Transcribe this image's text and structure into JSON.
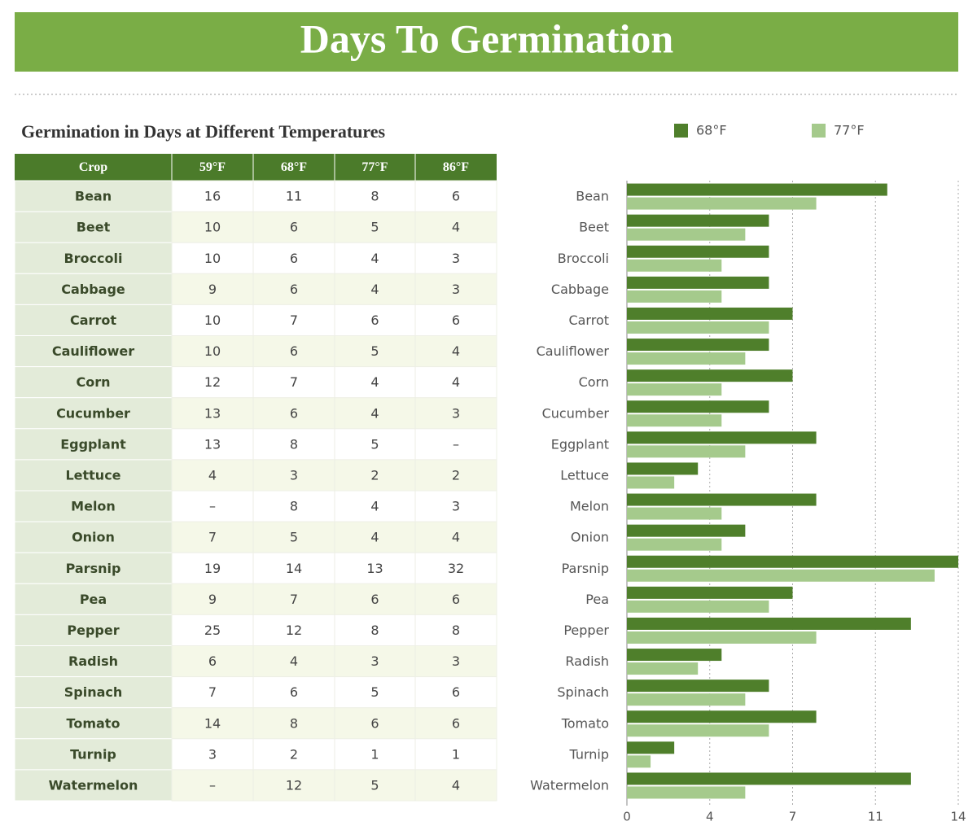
{
  "title": "Days To Germination",
  "table": {
    "title": "Germination in Days at Different Temperatures",
    "header": [
      "Crop",
      "59°F",
      "68°F",
      "77°F",
      "86°F"
    ],
    "rows": [
      [
        "Bean",
        16,
        11,
        8,
        6
      ],
      [
        "Beet",
        10,
        6,
        5,
        4
      ],
      [
        "Broccoli",
        10,
        6,
        4,
        3
      ],
      [
        "Cabbage",
        9,
        6,
        4,
        3
      ],
      [
        "Carrot",
        10,
        7,
        6,
        6
      ],
      [
        "Cauliflower",
        10,
        6,
        5,
        4
      ],
      [
        "Corn",
        12,
        7,
        4,
        4
      ],
      [
        "Cucumber",
        13,
        6,
        4,
        3
      ],
      [
        "Eggplant",
        13,
        8,
        5,
        "–"
      ],
      [
        "Lettuce",
        4,
        3,
        2,
        2
      ],
      [
        "Melon",
        "–",
        8,
        4,
        3
      ],
      [
        "Onion",
        7,
        5,
        4,
        4
      ],
      [
        "Parsnip",
        19,
        14,
        13,
        32
      ],
      [
        "Pea",
        9,
        7,
        6,
        6
      ],
      [
        "Pepper",
        25,
        12,
        8,
        8
      ],
      [
        "Radish",
        6,
        4,
        3,
        3
      ],
      [
        "Spinach",
        7,
        6,
        5,
        6
      ],
      [
        "Tomato",
        14,
        8,
        6,
        6
      ],
      [
        "Turnip",
        3,
        2,
        1,
        1
      ],
      [
        "Watermelon",
        "–",
        12,
        5,
        4
      ]
    ]
  },
  "chart_data": {
    "type": "hbar",
    "categories": [
      "Bean",
      "Beet",
      "Broccoli",
      "Cabbage",
      "Carrot",
      "Cauliflower",
      "Corn",
      "Cucumber",
      "Eggplant",
      "Lettuce",
      "Melon",
      "Onion",
      "Parsnip",
      "Pea",
      "Pepper",
      "Radish",
      "Spinach",
      "Tomato",
      "Turnip",
      "Watermelon"
    ],
    "series": [
      {
        "name": "68°F",
        "color": "#4f7f2b",
        "values": [
          11,
          6,
          6,
          6,
          7,
          6,
          7,
          6,
          8,
          3,
          8,
          5,
          14,
          7,
          12,
          4,
          6,
          8,
          2,
          12
        ]
      },
      {
        "name": "77°F",
        "color": "#a5ca8c",
        "values": [
          8,
          5,
          4,
          4,
          6,
          5,
          4,
          4,
          5,
          2,
          4,
          4,
          13,
          6,
          8,
          3,
          5,
          6,
          1,
          5
        ]
      }
    ],
    "xlim": [
      0,
      14
    ],
    "xticks": [
      0,
      {
        "value": 3.5,
        "label": "4"
      },
      7,
      {
        "value": 10.5,
        "label": "11"
      },
      14
    ],
    "grid": true
  }
}
